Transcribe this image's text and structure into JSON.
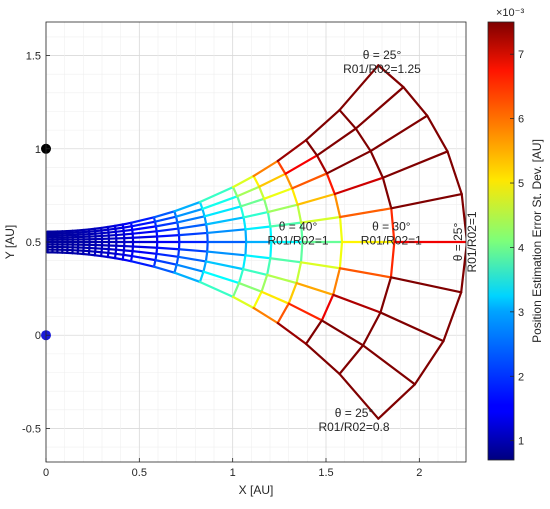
{
  "chart_data": {
    "type": "line",
    "title": "",
    "xlabel": "X  [AU]",
    "ylabel": "Y  [AU]",
    "xlim": [
      0,
      2.25
    ],
    "ylim": [
      -0.68,
      1.68
    ],
    "xticks": [
      0,
      0.5,
      1,
      1.5,
      2
    ],
    "xtick_labels": [
      "0",
      "0.5",
      "1",
      "1.5",
      "2"
    ],
    "yticks": [
      -0.5,
      0,
      0.5,
      1,
      1.5
    ],
    "ytick_labels": [
      "-0.5",
      "0",
      "0.5",
      "1",
      "1.5"
    ],
    "grid": true,
    "sensors": [
      {
        "x": 0,
        "y": 1,
        "color": "#000000"
      },
      {
        "x": 0,
        "y": 0,
        "color": "#1a1ad9"
      }
    ],
    "mesh": {
      "theta_deg": [
        90,
        80,
        70,
        60,
        50,
        45,
        40,
        35,
        30,
        25
      ],
      "ratio": [
        0.8,
        0.85,
        0.9,
        0.95,
        1,
        1.05,
        1.1,
        1.15,
        1.2,
        1.25
      ]
    },
    "annotations": [
      {
        "lines": [
          "θ = 25°",
          "R01/R02=1.25"
        ],
        "line1": "θ = 25°",
        "line2": "R01/R02=1.25",
        "x": 1.8,
        "y": 1.47
      },
      {
        "lines": [
          "θ = 40°",
          "R01/R02=1"
        ],
        "line1": "θ = 40°",
        "line2": "R01/R02=1",
        "x": 1.35,
        "y": 0.55
      },
      {
        "lines": [
          "θ = 30°",
          "R01/R02=1"
        ],
        "line1": "θ = 30°",
        "line2": "R01/R02=1",
        "x": 1.85,
        "y": 0.55
      },
      {
        "lines": [
          "θ = 25°",
          "R01/R02=1"
        ],
        "line1": "θ = 25°",
        "line2": "R01/R02=1",
        "x": 2.24,
        "y": 0.5,
        "rotate": true
      },
      {
        "lines": [
          "θ = 25°",
          "R01/R02=0.8"
        ],
        "line1": "θ = 25°",
        "line2": "R01/R02=0.8",
        "x": 1.65,
        "y": -0.45
      }
    ],
    "colorbar": {
      "label": "Position Estimation Error St. Dev. [AU]",
      "min": 0.7,
      "max": 7.5,
      "exponent": "×10⁻³",
      "ticks": [
        1,
        2,
        3,
        4,
        5,
        6,
        7
      ],
      "tick_labels": [
        "1",
        "2",
        "3",
        "4",
        "5",
        "6",
        "7"
      ],
      "colormap": "jet"
    }
  }
}
